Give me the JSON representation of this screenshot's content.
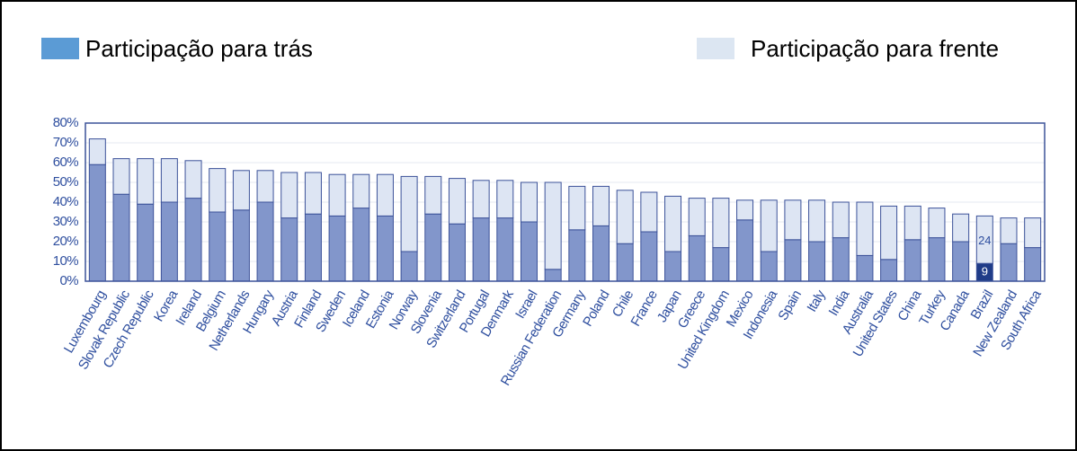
{
  "chart_data": {
    "type": "stacked_bar",
    "legend": [
      {
        "label": "Participação para trás",
        "color": "#5b9bd5"
      },
      {
        "label": "Participação para frente",
        "color": "#dce6f2"
      }
    ],
    "categories": [
      "Luxembourg",
      "Slovak Republic",
      "Czech Republic",
      "Korea",
      "Ireland",
      "Belgium",
      "Netherlands",
      "Hungary",
      "Austria",
      "Finland",
      "Sweden",
      "Iceland",
      "Estonia",
      "Norway",
      "Slovenia",
      "Switzerland",
      "Portugal",
      "Denmark",
      "Israel",
      "Russian Federation",
      "Germany",
      "Poland",
      "Chile",
      "France",
      "Japan",
      "Greece",
      "United Kingdom",
      "Mexico",
      "Indonesia",
      "Spain",
      "Italy",
      "India",
      "Australia",
      "United States",
      "China",
      "Turkey",
      "Canada",
      "Brazil",
      "New Zealand",
      "South Africa"
    ],
    "series": [
      {
        "name": "Participação para trás",
        "color": "#8296cb",
        "highlight_color": "#1f3c88",
        "values": [
          59,
          44,
          39,
          40,
          42,
          35,
          36,
          40,
          32,
          34,
          33,
          37,
          33,
          15,
          34,
          29,
          32,
          32,
          30,
          6,
          26,
          28,
          19,
          25,
          15,
          23,
          17,
          31,
          15,
          21,
          20,
          22,
          13,
          11,
          21,
          22,
          20,
          9,
          19,
          17
        ],
        "value_labels": [
          null,
          null,
          null,
          null,
          null,
          null,
          null,
          null,
          null,
          null,
          null,
          null,
          null,
          null,
          null,
          null,
          null,
          null,
          null,
          null,
          null,
          null,
          null,
          null,
          null,
          null,
          null,
          null,
          null,
          null,
          null,
          null,
          null,
          null,
          null,
          null,
          null,
          "9",
          null,
          null
        ]
      },
      {
        "name": "Participação para frente",
        "color": "#dde5f3",
        "values": [
          13,
          18,
          23,
          22,
          19,
          22,
          20,
          16,
          23,
          21,
          21,
          17,
          21,
          38,
          19,
          23,
          19,
          19,
          20,
          44,
          22,
          20,
          27,
          20,
          28,
          19,
          25,
          10,
          26,
          20,
          21,
          18,
          27,
          27,
          17,
          15,
          14,
          24,
          13,
          15
        ],
        "value_labels": [
          null,
          null,
          null,
          null,
          null,
          null,
          null,
          null,
          null,
          null,
          null,
          null,
          null,
          null,
          null,
          null,
          null,
          null,
          null,
          null,
          null,
          null,
          null,
          null,
          null,
          null,
          null,
          null,
          null,
          null,
          null,
          null,
          null,
          null,
          null,
          null,
          null,
          "24",
          null,
          null
        ]
      }
    ],
    "highlight_category": "Brazil",
    "ylim": [
      0,
      80
    ],
    "yticks": [
      {
        "value": 0,
        "label": "0%"
      },
      {
        "value": 10,
        "label": "10%"
      },
      {
        "value": 20,
        "label": "20%"
      },
      {
        "value": 30,
        "label": "30%"
      },
      {
        "value": 40,
        "label": "40%"
      },
      {
        "value": 50,
        "label": "50%"
      },
      {
        "value": 60,
        "label": "60%"
      },
      {
        "value": 70,
        "label": "70%"
      },
      {
        "value": 80,
        "label": "80%"
      }
    ],
    "grid": true
  }
}
